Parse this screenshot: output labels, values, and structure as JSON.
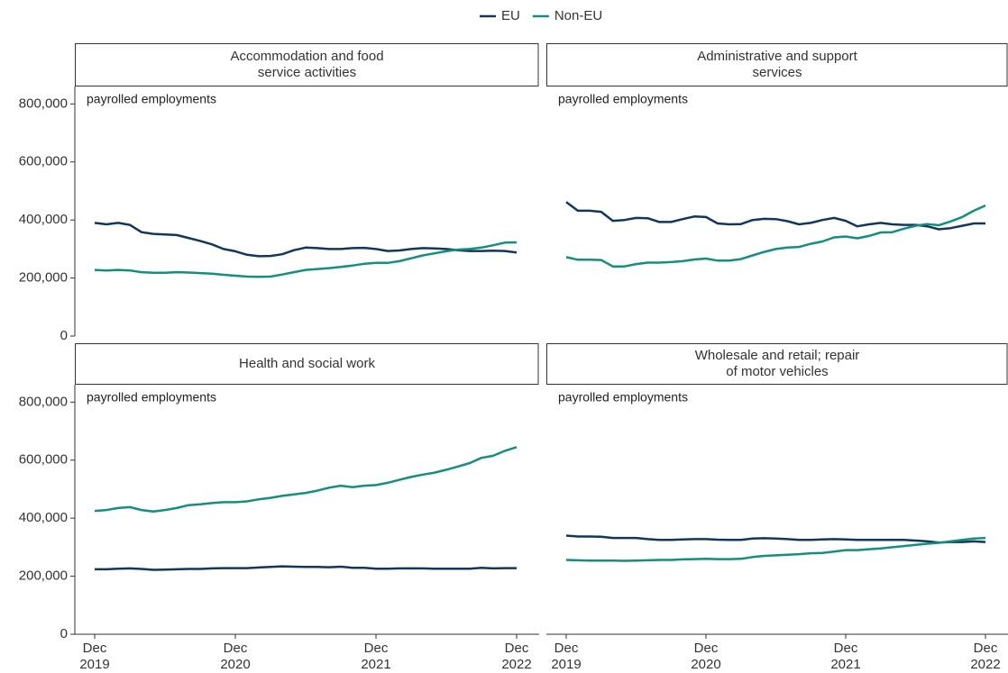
{
  "chart_data": [
    {
      "type": "line",
      "title": "Accommodation and food\nservice activities",
      "annotation": "payrolled employments",
      "ylim": [
        0,
        860000
      ],
      "yticks": [
        0,
        {
          "value": 200000,
          "label": "200,000"
        },
        {
          "value": 400000,
          "label": "400,000"
        },
        {
          "value": 600000,
          "label": "600,000"
        },
        {
          "value": 800000,
          "label": "800,000"
        }
      ],
      "series": [
        {
          "name": "EU",
          "color": "#12375f",
          "values": [
            390000,
            385000,
            390000,
            383000,
            358000,
            352000,
            350000,
            348000,
            338000,
            328000,
            316000,
            300000,
            292000,
            280000,
            275000,
            276000,
            282000,
            296000,
            305000,
            303000,
            300000,
            300000,
            303000,
            304000,
            300000,
            293000,
            295000,
            300000,
            303000,
            302000,
            300000,
            296000,
            293000,
            293000,
            294000,
            293000,
            288000
          ]
        },
        {
          "name": "Non-EU",
          "color": "#12907d",
          "values": [
            228000,
            226000,
            228000,
            226000,
            220000,
            218000,
            218000,
            220000,
            219000,
            217000,
            215000,
            211000,
            208000,
            205000,
            204000,
            205000,
            212000,
            220000,
            228000,
            231000,
            234000,
            238000,
            243000,
            249000,
            252000,
            252000,
            258000,
            268000,
            278000,
            285000,
            292000,
            298000,
            300000,
            305000,
            313000,
            322000,
            323000
          ]
        }
      ]
    },
    {
      "type": "line",
      "title": "Administrative and support\nservices",
      "annotation": "payrolled employments",
      "ylim": [
        0,
        860000
      ],
      "series": [
        {
          "color": "#12375f",
          "values": [
            462000,
            432000,
            432000,
            428000,
            397000,
            400000,
            407000,
            406000,
            393000,
            393000,
            403000,
            412000,
            410000,
            388000,
            385000,
            386000,
            400000,
            404000,
            403000,
            396000,
            385000,
            390000,
            400000,
            407000,
            397000,
            378000,
            385000,
            390000,
            385000,
            383000,
            383000,
            378000,
            368000,
            372000,
            380000,
            388000,
            388000
          ]
        },
        {
          "color": "#12907d",
          "values": [
            272000,
            263000,
            263000,
            262000,
            240000,
            240000,
            248000,
            253000,
            253000,
            255000,
            258000,
            264000,
            267000,
            260000,
            260000,
            265000,
            278000,
            290000,
            300000,
            305000,
            307000,
            318000,
            326000,
            340000,
            343000,
            337000,
            345000,
            357000,
            358000,
            370000,
            380000,
            386000,
            382000,
            395000,
            410000,
            432000,
            450000
          ]
        }
      ]
    },
    {
      "type": "line",
      "title": "Health and social work",
      "annotation": "payrolled employments",
      "ylim": [
        0,
        860000
      ],
      "yticks": [
        0,
        {
          "value": 200000,
          "label": "200,000"
        },
        {
          "value": 400000,
          "label": "400,000"
        },
        {
          "value": 600000,
          "label": "600,000"
        },
        {
          "value": 800000,
          "label": "800,000"
        }
      ],
      "categories": [
        "Dec\n2019",
        null,
        null,
        null,
        null,
        null,
        null,
        null,
        null,
        null,
        null,
        null,
        "Dec\n2020",
        null,
        null,
        null,
        null,
        null,
        null,
        null,
        null,
        null,
        null,
        null,
        "Dec\n2021",
        null,
        null,
        null,
        null,
        null,
        null,
        null,
        null,
        null,
        null,
        null,
        "Dec\n2022"
      ],
      "series": [
        {
          "color": "#12375f",
          "values": [
            224000,
            224000,
            226000,
            227000,
            225000,
            222000,
            223000,
            224000,
            225000,
            225000,
            227000,
            228000,
            228000,
            228000,
            230000,
            232000,
            234000,
            233000,
            232000,
            232000,
            231000,
            233000,
            229000,
            229000,
            226000,
            226000,
            227000,
            227000,
            227000,
            226000,
            226000,
            226000,
            226000,
            229000,
            227000,
            228000,
            228000
          ]
        },
        {
          "color": "#12907d",
          "values": [
            425000,
            428000,
            435000,
            438000,
            428000,
            423000,
            428000,
            435000,
            445000,
            448000,
            452000,
            455000,
            455000,
            458000,
            465000,
            470000,
            477000,
            482000,
            487000,
            495000,
            505000,
            512000,
            507000,
            512000,
            514000,
            522000,
            532000,
            542000,
            550000,
            557000,
            567000,
            578000,
            590000,
            608000,
            615000,
            632000,
            645000
          ]
        }
      ]
    },
    {
      "type": "line",
      "title": "Wholesale and retail; repair\nof motor vehicles",
      "annotation": "payrolled employments",
      "ylim": [
        0,
        860000
      ],
      "categories": [
        "Dec\n2019",
        null,
        null,
        null,
        null,
        null,
        null,
        null,
        null,
        null,
        null,
        null,
        "Dec\n2020",
        null,
        null,
        null,
        null,
        null,
        null,
        null,
        null,
        null,
        null,
        null,
        "Dec\n2021",
        null,
        null,
        null,
        null,
        null,
        null,
        null,
        null,
        null,
        null,
        null,
        "Dec\n2022"
      ],
      "series": [
        {
          "color": "#12375f",
          "values": [
            340000,
            337000,
            337000,
            336000,
            332000,
            332000,
            332000,
            328000,
            325000,
            325000,
            327000,
            328000,
            328000,
            326000,
            325000,
            325000,
            330000,
            331000,
            330000,
            328000,
            325000,
            325000,
            327000,
            328000,
            327000,
            325000,
            325000,
            325000,
            325000,
            325000,
            323000,
            320000,
            316000,
            318000,
            318000,
            320000,
            318000
          ]
        },
        {
          "color": "#12907d",
          "values": [
            256000,
            255000,
            254000,
            254000,
            254000,
            253000,
            254000,
            255000,
            256000,
            256000,
            258000,
            259000,
            260000,
            259000,
            259000,
            260000,
            266000,
            270000,
            272000,
            274000,
            276000,
            279000,
            280000,
            285000,
            290000,
            290000,
            293000,
            296000,
            300000,
            304000,
            308000,
            312000,
            315000,
            320000,
            325000,
            330000,
            332000
          ]
        }
      ]
    }
  ]
}
